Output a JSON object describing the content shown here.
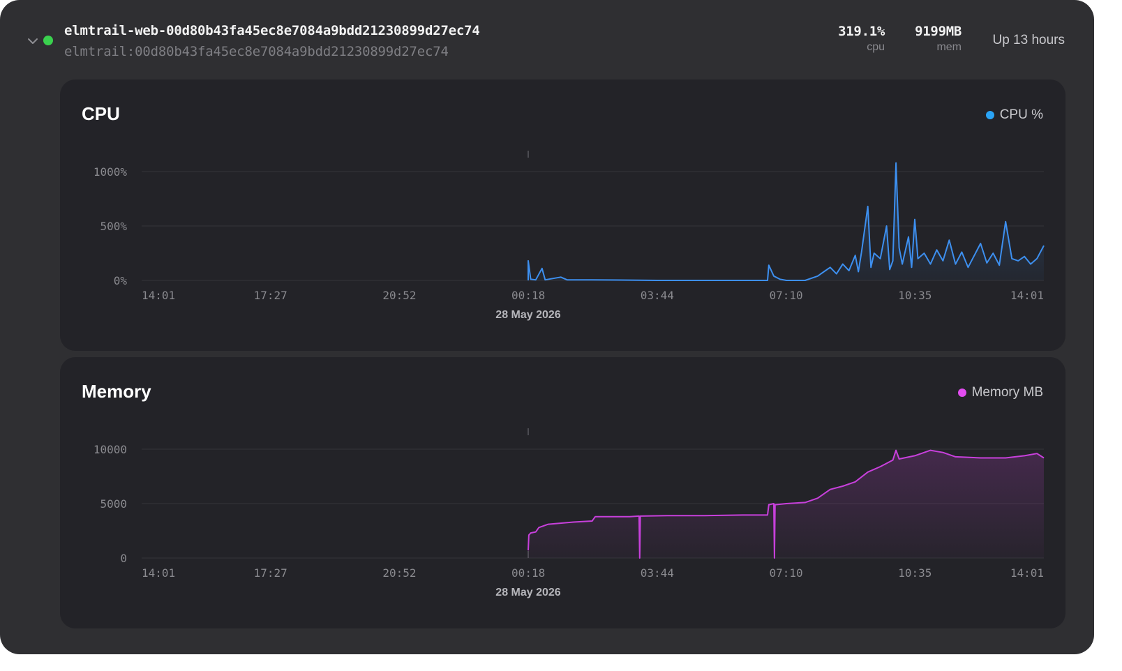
{
  "container": {
    "name": "elmtrail-web-00d80b43fa45ec8e7084a9bdd21230899d27ec74",
    "image": "elmtrail:00d80b43fa45ec8e7084a9bdd21230899d27ec74",
    "status_color": "#3ad14e",
    "cpu_value": "319.1%",
    "cpu_label": "cpu",
    "mem_value": "9199MB",
    "mem_label": "mem",
    "uptime": "Up 13 hours"
  },
  "cpu_panel": {
    "title": "CPU",
    "legend": "CPU %",
    "color": "#3d8fef"
  },
  "memory_panel": {
    "title": "Memory",
    "legend": "Memory MB",
    "color": "#d64ae6"
  },
  "chart_data": [
    {
      "type": "area",
      "title": "CPU",
      "series": [
        {
          "name": "CPU %",
          "color": "#3d8fef"
        }
      ],
      "ylim": [
        0,
        1000
      ],
      "y_ticks": [
        {
          "value": 1000,
          "label": "1000%"
        },
        {
          "value": 500,
          "label": "500%"
        },
        {
          "value": 0,
          "label": "0%"
        }
      ],
      "x_tick_labels": [
        "14:01",
        "17:27",
        "20:52",
        "00:18",
        "03:44",
        "07:10",
        "10:35",
        "14:01"
      ],
      "date_marker": {
        "at": "00:18",
        "label": "28 May 2026"
      },
      "points": [
        [
          "00:18",
          0
        ],
        [
          "00:18",
          180
        ],
        [
          "00:22",
          10
        ],
        [
          "00:30",
          5
        ],
        [
          "00:40",
          110
        ],
        [
          "00:45",
          5
        ],
        [
          "01:10",
          30
        ],
        [
          "01:20",
          5
        ],
        [
          "02:00",
          5
        ],
        [
          "03:44",
          0
        ],
        [
          "05:00",
          0
        ],
        [
          "06:40",
          0
        ],
        [
          "06:42",
          140
        ],
        [
          "06:50",
          40
        ],
        [
          "07:00",
          10
        ],
        [
          "07:10",
          0
        ],
        [
          "07:40",
          0
        ],
        [
          "08:00",
          40
        ],
        [
          "08:10",
          80
        ],
        [
          "08:20",
          120
        ],
        [
          "08:30",
          60
        ],
        [
          "08:40",
          150
        ],
        [
          "08:50",
          90
        ],
        [
          "09:00",
          230
        ],
        [
          "09:05",
          80
        ],
        [
          "09:10",
          260
        ],
        [
          "09:20",
          680
        ],
        [
          "09:25",
          120
        ],
        [
          "09:30",
          250
        ],
        [
          "09:40",
          200
        ],
        [
          "09:50",
          500
        ],
        [
          "09:55",
          100
        ],
        [
          "10:00",
          180
        ],
        [
          "10:05",
          1080
        ],
        [
          "10:10",
          300
        ],
        [
          "10:15",
          150
        ],
        [
          "10:25",
          400
        ],
        [
          "10:30",
          120
        ],
        [
          "10:35",
          560
        ],
        [
          "10:40",
          200
        ],
        [
          "10:50",
          250
        ],
        [
          "11:00",
          150
        ],
        [
          "11:10",
          280
        ],
        [
          "11:20",
          180
        ],
        [
          "11:30",
          370
        ],
        [
          "11:40",
          150
        ],
        [
          "11:50",
          260
        ],
        [
          "12:00",
          120
        ],
        [
          "12:20",
          340
        ],
        [
          "12:30",
          160
        ],
        [
          "12:40",
          250
        ],
        [
          "12:50",
          140
        ],
        [
          "13:00",
          540
        ],
        [
          "13:10",
          200
        ],
        [
          "13:20",
          180
        ],
        [
          "13:30",
          220
        ],
        [
          "13:40",
          150
        ],
        [
          "13:50",
          200
        ],
        [
          "14:01",
          320
        ]
      ]
    },
    {
      "type": "area",
      "title": "Memory",
      "series": [
        {
          "name": "Memory MB",
          "color": "#d64ae6"
        }
      ],
      "ylim": [
        0,
        10000
      ],
      "y_ticks": [
        {
          "value": 10000,
          "label": "10000"
        },
        {
          "value": 5000,
          "label": "5000"
        },
        {
          "value": 0,
          "label": "0"
        }
      ],
      "x_tick_labels": [
        "14:01",
        "17:27",
        "20:52",
        "00:18",
        "03:44",
        "07:10",
        "10:35",
        "14:01"
      ],
      "date_marker": {
        "at": "00:18",
        "label": "28 May 2026"
      },
      "points": [
        [
          "00:18",
          700
        ],
        [
          "00:19",
          2100
        ],
        [
          "00:22",
          2300
        ],
        [
          "00:30",
          2400
        ],
        [
          "00:35",
          2800
        ],
        [
          "00:50",
          3100
        ],
        [
          "01:30",
          3300
        ],
        [
          "02:00",
          3400
        ],
        [
          "02:05",
          3800
        ],
        [
          "03:00",
          3800
        ],
        [
          "03:15",
          3850
        ],
        [
          "03:16",
          0
        ],
        [
          "03:17",
          3850
        ],
        [
          "04:00",
          3900
        ],
        [
          "05:00",
          3900
        ],
        [
          "06:00",
          3950
        ],
        [
          "06:40",
          3950
        ],
        [
          "06:42",
          4900
        ],
        [
          "06:50",
          5000
        ],
        [
          "06:51",
          0
        ],
        [
          "06:52",
          4900
        ],
        [
          "07:10",
          5000
        ],
        [
          "07:40",
          5100
        ],
        [
          "08:00",
          5500
        ],
        [
          "08:20",
          6300
        ],
        [
          "08:40",
          6600
        ],
        [
          "09:00",
          7000
        ],
        [
          "09:20",
          7900
        ],
        [
          "09:40",
          8400
        ],
        [
          "10:00",
          9000
        ],
        [
          "10:05",
          9900
        ],
        [
          "10:10",
          9100
        ],
        [
          "10:35",
          9400
        ],
        [
          "11:00",
          9900
        ],
        [
          "11:20",
          9700
        ],
        [
          "11:40",
          9300
        ],
        [
          "12:20",
          9200
        ],
        [
          "13:00",
          9200
        ],
        [
          "13:30",
          9400
        ],
        [
          "13:50",
          9600
        ],
        [
          "14:01",
          9200
        ]
      ]
    }
  ]
}
